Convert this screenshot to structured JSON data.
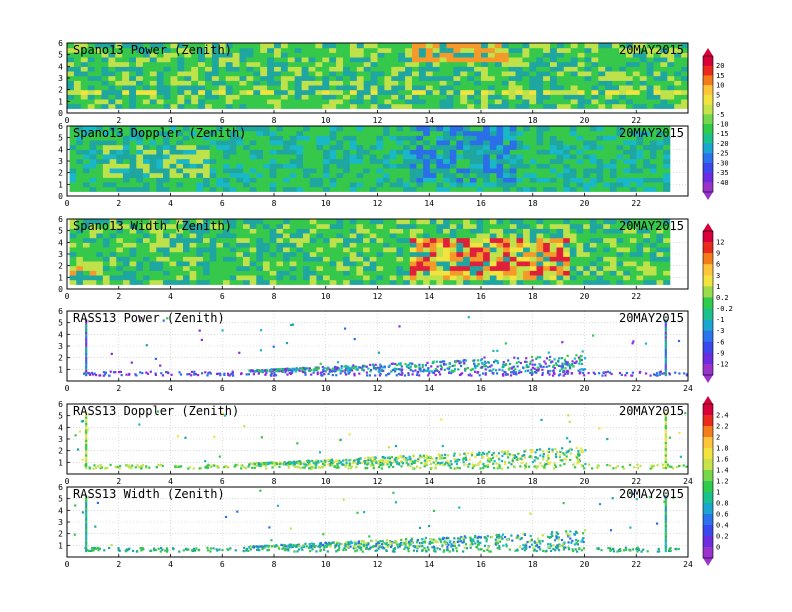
{
  "chart_data": [
    {
      "id": "p1",
      "type": "heatmap",
      "instrument": "Spano13",
      "quantity": "Power",
      "title": "Spano13 Power (Zenith)",
      "date": "20MAY2015",
      "x": {
        "range": [
          0,
          24
        ],
        "ticks": [
          0,
          2,
          4,
          6,
          8,
          10,
          12,
          14,
          16,
          18,
          20,
          22
        ]
      },
      "y": {
        "range": [
          0,
          6
        ],
        "ticks": [
          0,
          1,
          2,
          3,
          4,
          5,
          6
        ]
      },
      "scale": "a",
      "colorbar": "a"
    },
    {
      "id": "p2",
      "type": "heatmap",
      "instrument": "Spano13",
      "quantity": "Doppler",
      "title": "Spano13 Doppler (Zenith)",
      "date": "20MAY2015",
      "x": {
        "range": [
          0,
          24
        ],
        "ticks": [
          0,
          2,
          4,
          6,
          8,
          10,
          12,
          14,
          16,
          18,
          20,
          22
        ]
      },
      "y": {
        "range": [
          0,
          6
        ],
        "ticks": [
          0,
          1,
          2,
          3,
          4,
          5,
          6
        ]
      },
      "scale": "a"
    },
    {
      "id": "p3",
      "type": "heatmap",
      "instrument": "Spano13",
      "quantity": "Width",
      "title": "Spano13 Width (Zenith)",
      "date": "20MAY2015",
      "x": {
        "range": [
          0,
          24
        ],
        "ticks": [
          0,
          2,
          4,
          6,
          8,
          10,
          12,
          14,
          16,
          18,
          20,
          22
        ]
      },
      "y": {
        "range": [
          0,
          6
        ],
        "ticks": [
          0,
          1,
          2,
          3,
          4,
          5,
          6
        ]
      },
      "scale": "b",
      "colorbar": "b"
    },
    {
      "id": "p4",
      "type": "scatter",
      "instrument": "RASS13",
      "quantity": "Power",
      "title": "RASS13 Power (Zenith)",
      "date": "20MAY2015",
      "x": {
        "range": [
          0,
          24
        ],
        "ticks": [
          0,
          2,
          4,
          6,
          8,
          10,
          12,
          14,
          16,
          18,
          20,
          22,
          24
        ]
      },
      "y": {
        "range": [
          0,
          6
        ],
        "ticks": [
          1,
          2,
          3,
          4,
          5,
          6
        ]
      },
      "scale": "b"
    },
    {
      "id": "p5",
      "type": "scatter",
      "instrument": "RASS13",
      "quantity": "Doppler",
      "title": "RASS13 Doppler (Zenith)",
      "date": "20MAY2015",
      "x": {
        "range": [
          0,
          24
        ],
        "ticks": [
          0,
          2,
          4,
          6,
          8,
          10,
          12,
          14,
          16,
          18,
          20,
          22,
          24
        ]
      },
      "y": {
        "range": [
          0,
          6
        ],
        "ticks": [
          1,
          2,
          3,
          4,
          5,
          6
        ]
      },
      "scale": "c",
      "colorbar": "c"
    },
    {
      "id": "p6",
      "type": "scatter",
      "instrument": "RASS13",
      "quantity": "Width",
      "title": "RASS13 Width (Zenith)",
      "date": "20MAY2015",
      "x": {
        "range": [
          0,
          24
        ],
        "ticks": [
          0,
          2,
          4,
          6,
          8,
          10,
          12,
          14,
          16,
          18,
          20,
          22,
          24
        ]
      },
      "y": {
        "range": [
          0,
          6
        ],
        "ticks": [
          1,
          2,
          3,
          4,
          5,
          6
        ]
      },
      "scale": "c"
    }
  ],
  "colorbars": {
    "a": {
      "labels": [
        "20",
        "15",
        "10",
        "5",
        "0",
        "-5",
        "-10",
        "-15",
        "-20",
        "-25",
        "-30",
        "-35",
        "-40"
      ],
      "colors": [
        "#d8003a",
        "#ea2a1a",
        "#f57c1d",
        "#ffc53a",
        "#f3e33f",
        "#c6e34a",
        "#74d84a",
        "#2ecc4a",
        "#19c28c",
        "#1aa6d0",
        "#2b74ee",
        "#3b48ee",
        "#6c2ce0",
        "#9933cc"
      ]
    },
    "b": {
      "labels": [
        "12",
        "9",
        "6",
        "3",
        "1",
        "0.2",
        "-0.2",
        "-1",
        "-3",
        "-6",
        "-9",
        "-12"
      ],
      "colors": [
        "#d8003a",
        "#ea2a1a",
        "#f57c1d",
        "#ffc53a",
        "#f3e33f",
        "#9cdc4a",
        "#2ecc4a",
        "#19c28c",
        "#1aa6d0",
        "#2b74ee",
        "#3b48ee",
        "#6c2ce0",
        "#9933cc"
      ]
    },
    "c": {
      "labels": [
        "2.4",
        "2.2",
        "2",
        "1.8",
        "1.6",
        "1.4",
        "1.2",
        "1",
        "0.8",
        "0.6",
        "0.4",
        "0.2",
        "0"
      ],
      "colors": [
        "#d8003a",
        "#ea2a1a",
        "#f57c1d",
        "#ffc53a",
        "#f3e33f",
        "#c6e34a",
        "#74d84a",
        "#2ecc4a",
        "#19c28c",
        "#1aa6d0",
        "#2b74ee",
        "#3b48ee",
        "#6c2ce0",
        "#9933cc"
      ]
    }
  }
}
